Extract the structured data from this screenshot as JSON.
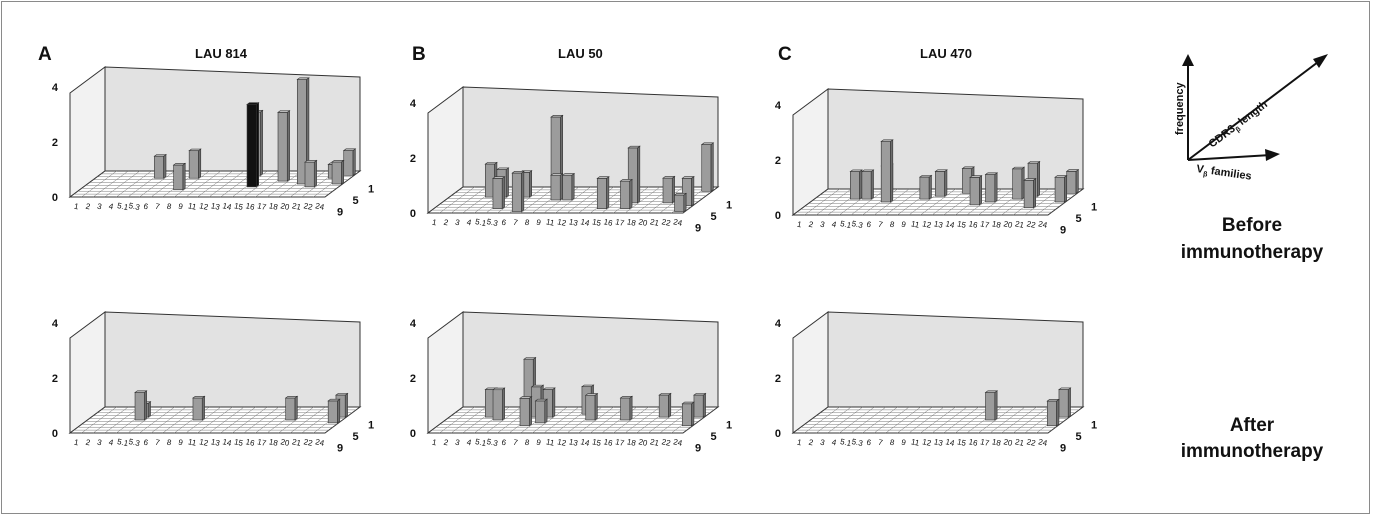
{
  "panels": [
    {
      "letter": "A",
      "title": "LAU 814"
    },
    {
      "letter": "B",
      "title": "LAU 50"
    },
    {
      "letter": "C",
      "title": "LAU 470"
    }
  ],
  "row_labels": [
    {
      "line1": "Before",
      "line2": "immunotherapy"
    },
    {
      "line1": "After",
      "line2": "immunotherapy"
    }
  ],
  "legend": {
    "frequency": "frequency",
    "cdr3_prefix": "CDR3",
    "cdr3_sub": "β",
    "cdr3_suffix": " length",
    "vb_prefix": "V",
    "vb_sub": "β",
    "vb_suffix": " families"
  },
  "colors": {
    "bar": "#9c9c9c",
    "bar_highlight": "#111111",
    "wall": "#e2e2e2",
    "grid": "#777777"
  },
  "chart_data": [
    {
      "type": "bar3d",
      "panel": "A",
      "row": "Before immunotherapy",
      "x_categories": [
        "1",
        "2",
        "3",
        "4",
        "5.1",
        "5.3",
        "6",
        "7",
        "8",
        "9",
        "11",
        "12",
        "13",
        "14",
        "15",
        "16",
        "17",
        "18",
        "20",
        "21",
        "22",
        "24"
      ],
      "z_ticks": [
        "1",
        "5",
        "9"
      ],
      "y_ticks": [
        "0",
        "2",
        "4"
      ],
      "ylim": [
        0,
        4
      ],
      "bars": [
        {
          "x": "5.3",
          "depth": 7,
          "value": 0.8
        },
        {
          "x": "8",
          "depth": 7,
          "value": 1.0
        },
        {
          "x": "8",
          "depth": 3,
          "value": 0.9
        },
        {
          "x": "14",
          "depth": 8,
          "value": 2.3
        },
        {
          "x": "15",
          "depth": 4,
          "value": 3.0,
          "highlight": true
        },
        {
          "x": "17",
          "depth": 6,
          "value": 2.5
        },
        {
          "x": "20",
          "depth": 5,
          "value": 3.8
        },
        {
          "x": "21",
          "depth": 4,
          "value": 0.9
        },
        {
          "x": "22",
          "depth": 7,
          "value": 0.5
        },
        {
          "x": "24",
          "depth": 5,
          "value": 0.8
        },
        {
          "x": "24",
          "depth": 8,
          "value": 0.9
        }
      ]
    },
    {
      "type": "bar3d",
      "panel": "B",
      "row": "Before immunotherapy",
      "x_categories": [
        "1",
        "2",
        "3",
        "4",
        "5.1",
        "5.3",
        "6",
        "7",
        "8",
        "9",
        "11",
        "12",
        "13",
        "14",
        "15",
        "16",
        "17",
        "18",
        "20",
        "21",
        "22",
        "24"
      ],
      "z_ticks": [
        "1",
        "5",
        "9"
      ],
      "y_ticks": [
        "0",
        "2",
        "4"
      ],
      "ylim": [
        0,
        4
      ],
      "bars": [
        {
          "x": "4",
          "depth": 6,
          "value": 1.2
        },
        {
          "x": "5.1",
          "depth": 6,
          "value": 1.0
        },
        {
          "x": "5.3",
          "depth": 2,
          "value": 1.1
        },
        {
          "x": "6",
          "depth": 6,
          "value": 0.9
        },
        {
          "x": "7",
          "depth": 1,
          "value": 1.4
        },
        {
          "x": "8",
          "depth": 8,
          "value": 2.7
        },
        {
          "x": "9",
          "depth": 5,
          "value": 0.9
        },
        {
          "x": "11",
          "depth": 5,
          "value": 0.9
        },
        {
          "x": "15",
          "depth": 2,
          "value": 1.1
        },
        {
          "x": "17",
          "depth": 4,
          "value": 2.0
        },
        {
          "x": "17",
          "depth": 2,
          "value": 1.0
        },
        {
          "x": "21",
          "depth": 4,
          "value": 0.9
        },
        {
          "x": "24",
          "depth": 8,
          "value": 1.7
        },
        {
          "x": "24",
          "depth": 3,
          "value": 1.0
        },
        {
          "x": "24",
          "depth": 1,
          "value": 0.6
        }
      ]
    },
    {
      "type": "bar3d",
      "panel": "C",
      "row": "Before immunotherapy",
      "x_categories": [
        "1",
        "2",
        "3",
        "4",
        "5.1",
        "5.3",
        "6",
        "7",
        "8",
        "9",
        "11",
        "12",
        "13",
        "14",
        "15",
        "16",
        "17",
        "18",
        "20",
        "21",
        "22",
        "24"
      ],
      "z_ticks": [
        "1",
        "5",
        "9"
      ],
      "y_ticks": [
        "0",
        "2",
        "4"
      ],
      "ylim": [
        0,
        4
      ],
      "bars": [
        {
          "x": "4",
          "depth": 6,
          "value": 1.0
        },
        {
          "x": "5.1",
          "depth": 6,
          "value": 1.0
        },
        {
          "x": "5.3",
          "depth": 8,
          "value": 1.0
        },
        {
          "x": "6",
          "depth": 5,
          "value": 2.2
        },
        {
          "x": "9",
          "depth": 6,
          "value": 0.8
        },
        {
          "x": "11",
          "depth": 7,
          "value": 0.9
        },
        {
          "x": "13",
          "depth": 8,
          "value": 0.9
        },
        {
          "x": "15",
          "depth": 4,
          "value": 1.0
        },
        {
          "x": "16",
          "depth": 5,
          "value": 1.0
        },
        {
          "x": "18",
          "depth": 6,
          "value": 1.1
        },
        {
          "x": "20",
          "depth": 7,
          "value": 1.2
        },
        {
          "x": "21",
          "depth": 3,
          "value": 1.0
        },
        {
          "x": "24",
          "depth": 5,
          "value": 0.9
        },
        {
          "x": "24",
          "depth": 8,
          "value": 0.8
        }
      ]
    },
    {
      "type": "bar3d",
      "panel": "A",
      "row": "After immunotherapy",
      "x_categories": [
        "1",
        "2",
        "3",
        "4",
        "5.1",
        "5.3",
        "6",
        "7",
        "8",
        "9",
        "11",
        "12",
        "13",
        "14",
        "15",
        "16",
        "17",
        "18",
        "20",
        "21",
        "22",
        "24"
      ],
      "z_ticks": [
        "1",
        "5",
        "9"
      ],
      "y_ticks": [
        "0",
        "2",
        "4"
      ],
      "ylim": [
        0,
        4
      ],
      "bars": [
        {
          "x": "5.1",
          "depth": 5,
          "value": 1.0
        },
        {
          "x": "5.1",
          "depth": 6,
          "value": 0.5
        },
        {
          "x": "9",
          "depth": 5,
          "value": 0.8
        },
        {
          "x": "18",
          "depth": 5,
          "value": 0.8
        },
        {
          "x": "24",
          "depth": 4,
          "value": 0.8
        },
        {
          "x": "24",
          "depth": 6,
          "value": 0.8
        }
      ]
    },
    {
      "type": "bar3d",
      "panel": "B",
      "row": "After immunotherapy",
      "x_categories": [
        "1",
        "2",
        "3",
        "4",
        "5.1",
        "5.3",
        "6",
        "7",
        "8",
        "9",
        "11",
        "12",
        "13",
        "14",
        "15",
        "16",
        "17",
        "18",
        "20",
        "21",
        "22",
        "24"
      ],
      "z_ticks": [
        "1",
        "5",
        "9"
      ],
      "y_ticks": [
        "0",
        "2",
        "4"
      ],
      "ylim": [
        0,
        4
      ],
      "bars": [
        {
          "x": "4",
          "depth": 6,
          "value": 1.0
        },
        {
          "x": "5.1",
          "depth": 5,
          "value": 1.1
        },
        {
          "x": "6",
          "depth": 7,
          "value": 2.0
        },
        {
          "x": "7",
          "depth": 3,
          "value": 1.0
        },
        {
          "x": "7",
          "depth": 6,
          "value": 1.1
        },
        {
          "x": "8",
          "depth": 6,
          "value": 1.0
        },
        {
          "x": "8",
          "depth": 4,
          "value": 0.8
        },
        {
          "x": "12",
          "depth": 7,
          "value": 1.0
        },
        {
          "x": "13",
          "depth": 5,
          "value": 0.9
        },
        {
          "x": "16",
          "depth": 5,
          "value": 0.8
        },
        {
          "x": "20",
          "depth": 6,
          "value": 0.8
        },
        {
          "x": "24",
          "depth": 3,
          "value": 0.8
        },
        {
          "x": "24",
          "depth": 6,
          "value": 0.8
        }
      ]
    },
    {
      "type": "bar3d",
      "panel": "C",
      "row": "After immunotherapy",
      "x_categories": [
        "1",
        "2",
        "3",
        "4",
        "5.1",
        "5.3",
        "6",
        "7",
        "8",
        "9",
        "11",
        "12",
        "13",
        "14",
        "15",
        "16",
        "17",
        "18",
        "20",
        "21",
        "22",
        "24"
      ],
      "z_ticks": [
        "1",
        "5",
        "9"
      ],
      "y_ticks": [
        "0",
        "2",
        "4"
      ],
      "ylim": [
        0,
        4
      ],
      "bars": [
        {
          "x": "16",
          "depth": 5,
          "value": 1.0
        },
        {
          "x": "24",
          "depth": 3,
          "value": 0.9
        },
        {
          "x": "24",
          "depth": 6,
          "value": 1.0
        }
      ]
    }
  ]
}
